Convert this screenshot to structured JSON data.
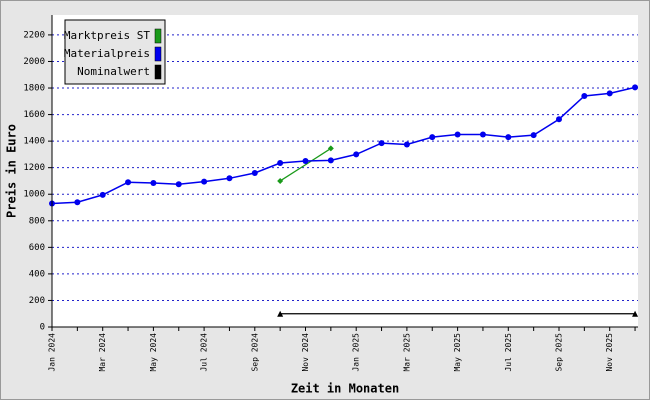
{
  "chart_data": {
    "type": "line",
    "x_label": "Zeit in Monaten",
    "y_label": "Preis in Euro",
    "categories": [
      "Jan 2024",
      null,
      "Mar 2024",
      null,
      "May 2024",
      null,
      "Jul 2024",
      null,
      "Sep 2024",
      null,
      "Nov 2024",
      null,
      "Jan 2025",
      null,
      "Mar 2025",
      null,
      "May 2025",
      null,
      "Jul 2025",
      null,
      "Sep 2025",
      null,
      "Nov 2025",
      null
    ],
    "series": [
      {
        "name": "Marktpreis ST",
        "color": "#1a9a1a",
        "values": [
          null,
          null,
          null,
          null,
          null,
          null,
          null,
          null,
          null,
          1100,
          1222,
          1345,
          null,
          null,
          null,
          null,
          null,
          null,
          null,
          null,
          null,
          null,
          null,
          null
        ]
      },
      {
        "name": "Materialpreis",
        "color": "#0000ee",
        "values": [
          930,
          940,
          995,
          1090,
          1085,
          1075,
          1095,
          1120,
          1160,
          1235,
          1250,
          1255,
          1300,
          1385,
          1375,
          1430,
          1450,
          1450,
          1430,
          1445,
          1565,
          1740,
          1760,
          1805
        ]
      },
      {
        "name": "Nominalwert",
        "color": "#000000",
        "values": [
          null,
          null,
          null,
          null,
          null,
          null,
          null,
          null,
          null,
          100,
          100,
          100,
          100,
          100,
          100,
          100,
          100,
          100,
          100,
          100,
          100,
          100,
          100,
          100
        ]
      }
    ],
    "ylim": [
      0,
      2350
    ],
    "yticks": [
      0,
      200,
      400,
      600,
      800,
      1000,
      1200,
      1400,
      1600,
      1800,
      2000,
      2200
    ],
    "grid": true,
    "legend": "upper left"
  }
}
